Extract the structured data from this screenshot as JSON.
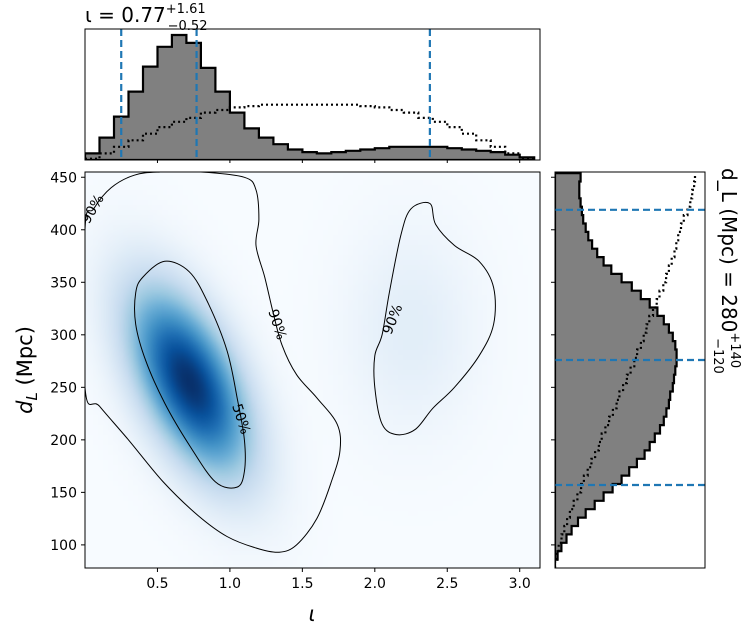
{
  "chart_data": [
    {
      "type": "histogram",
      "panel": "top-marginal",
      "title": {
        "base": "ι = 0.77",
        "sup": "+1.61",
        "sub": "−0.52"
      },
      "xlim": [
        0.0,
        3.14
      ],
      "x": [
        0.05,
        0.15,
        0.25,
        0.35,
        0.45,
        0.55,
        0.65,
        0.75,
        0.85,
        0.95,
        1.05,
        1.15,
        1.25,
        1.35,
        1.45,
        1.55,
        1.65,
        1.75,
        1.85,
        1.95,
        2.05,
        2.15,
        2.25,
        2.35,
        2.45,
        2.55,
        2.65,
        2.75,
        2.85,
        2.95,
        3.05
      ],
      "posterior": [
        0.05,
        0.17,
        0.33,
        0.52,
        0.71,
        0.86,
        0.95,
        0.89,
        0.7,
        0.52,
        0.36,
        0.24,
        0.17,
        0.12,
        0.08,
        0.06,
        0.05,
        0.06,
        0.07,
        0.08,
        0.09,
        0.1,
        0.1,
        0.1,
        0.1,
        0.09,
        0.08,
        0.07,
        0.06,
        0.04,
        0.02
      ],
      "prior": [
        0.01,
        0.05,
        0.1,
        0.15,
        0.2,
        0.25,
        0.29,
        0.32,
        0.36,
        0.38,
        0.4,
        0.41,
        0.42,
        0.42,
        0.42,
        0.42,
        0.42,
        0.42,
        0.42,
        0.41,
        0.4,
        0.38,
        0.36,
        0.32,
        0.29,
        0.25,
        0.2,
        0.15,
        0.1,
        0.05,
        0.01
      ],
      "quantile_lines": [
        0.25,
        0.77,
        2.38
      ]
    },
    {
      "type": "heatmap",
      "panel": "joint",
      "xlabel": "ι",
      "ylabel": "d_L (Mpc)",
      "xlim": [
        0.0,
        3.14
      ],
      "ylim": [
        78,
        455
      ],
      "xticks": [
        "0.5",
        "1.0",
        "1.5",
        "2.0",
        "2.5",
        "3.0"
      ],
      "yticks": [
        "100",
        "150",
        "200",
        "250",
        "300",
        "350",
        "400",
        "450"
      ],
      "colormap": "Blues",
      "modes": [
        {
          "iota": 0.72,
          "dL": 255,
          "sigma_iota": 0.26,
          "sigma_dL": 55,
          "corr": -0.55,
          "weight": 1.0
        },
        {
          "iota": 2.25,
          "dL": 305,
          "sigma_iota": 0.28,
          "sigma_dL": 60,
          "corr": 0.0,
          "weight": 0.06
        }
      ],
      "contours": [
        {
          "level": "50%",
          "points": [
            [
              0.4,
              355
            ],
            [
              0.55,
              370
            ],
            [
              0.72,
              360
            ],
            [
              0.85,
              330
            ],
            [
              0.98,
              285
            ],
            [
              1.05,
              240
            ],
            [
              1.1,
              200
            ],
            [
              1.1,
              170
            ],
            [
              1.05,
              155
            ],
            [
              0.9,
              160
            ],
            [
              0.72,
              195
            ],
            [
              0.55,
              235
            ],
            [
              0.42,
              275
            ],
            [
              0.35,
              310
            ],
            [
              0.35,
              340
            ]
          ]
        },
        {
          "level": "90%",
          "points": [
            [
              0.0,
              250
            ],
            [
              0.0,
              400
            ],
            [
              0.06,
              420
            ],
            [
              0.18,
              440
            ],
            [
              0.34,
              452
            ],
            [
              0.52,
              455
            ],
            [
              0.8,
              455
            ],
            [
              1.1,
              450
            ],
            [
              1.18,
              438
            ],
            [
              1.2,
              410
            ],
            [
              1.18,
              385
            ],
            [
              1.24,
              355
            ],
            [
              1.3,
              320
            ],
            [
              1.36,
              290
            ],
            [
              1.46,
              262
            ],
            [
              1.6,
              240
            ],
            [
              1.74,
              215
            ],
            [
              1.76,
              190
            ],
            [
              1.7,
              160
            ],
            [
              1.6,
              125
            ],
            [
              1.46,
              100
            ],
            [
              1.34,
              93
            ],
            [
              1.18,
              97
            ],
            [
              0.98,
              108
            ],
            [
              0.78,
              128
            ],
            [
              0.54,
              160
            ],
            [
              0.3,
              200
            ],
            [
              0.1,
              232
            ]
          ]
        },
        {
          "level": "90%",
          "points": [
            [
              2.1,
              340
            ],
            [
              2.18,
              395
            ],
            [
              2.25,
              420
            ],
            [
              2.38,
              425
            ],
            [
              2.42,
              405
            ],
            [
              2.55,
              385
            ],
            [
              2.72,
              370
            ],
            [
              2.82,
              345
            ],
            [
              2.82,
              310
            ],
            [
              2.72,
              280
            ],
            [
              2.55,
              250
            ],
            [
              2.4,
              230
            ],
            [
              2.28,
              210
            ],
            [
              2.15,
              205
            ],
            [
              2.05,
              215
            ],
            [
              2.0,
              250
            ],
            [
              2.0,
              280
            ],
            [
              2.05,
              300
            ]
          ]
        }
      ],
      "contour_labels": [
        {
          "text": "90%",
          "iota": 0.05,
          "dL": 420
        },
        {
          "text": "90%",
          "iota": 1.33,
          "dL": 310
        },
        {
          "text": "50%",
          "iota": 1.08,
          "dL": 220
        },
        {
          "text": "90%",
          "iota": 2.12,
          "dL": 315
        }
      ]
    },
    {
      "type": "histogram",
      "panel": "right-marginal",
      "orientation": "horizontal",
      "title": {
        "base": "d_L (Mpc) = 280",
        "sup": "+140",
        "sub": "−120"
      },
      "ylim": [
        78,
        455
      ],
      "y": [
        82,
        90,
        98,
        106,
        114,
        122,
        130,
        138,
        146,
        154,
        162,
        170,
        178,
        186,
        194,
        202,
        210,
        218,
        226,
        234,
        242,
        250,
        258,
        266,
        274,
        282,
        290,
        298,
        306,
        314,
        322,
        330,
        338,
        346,
        354,
        362,
        370,
        378,
        386,
        394,
        402,
        410,
        418,
        426,
        434,
        442,
        450
      ],
      "posterior": [
        0.0,
        0.02,
        0.05,
        0.09,
        0.13,
        0.18,
        0.24,
        0.31,
        0.38,
        0.45,
        0.52,
        0.58,
        0.64,
        0.7,
        0.74,
        0.78,
        0.82,
        0.85,
        0.87,
        0.89,
        0.9,
        0.92,
        0.93,
        0.94,
        0.95,
        0.95,
        0.94,
        0.92,
        0.89,
        0.85,
        0.8,
        0.74,
        0.67,
        0.6,
        0.52,
        0.44,
        0.38,
        0.33,
        0.29,
        0.26,
        0.24,
        0.22,
        0.21,
        0.2,
        0.19,
        0.19,
        0.2
      ],
      "prior": [
        0.0,
        0.02,
        0.04,
        0.07,
        0.1,
        0.13,
        0.16,
        0.2,
        0.24,
        0.28,
        0.31,
        0.35,
        0.39,
        0.43,
        0.47,
        0.5,
        0.54,
        0.58,
        0.62,
        0.66,
        0.69,
        0.73,
        0.77,
        0.81,
        0.85,
        0.88,
        0.92,
        0.95,
        0.98,
        1.01,
        1.05,
        1.09,
        1.12,
        1.16,
        1.19,
        1.22,
        1.25,
        1.28,
        1.3,
        1.32,
        1.35,
        1.38,
        1.42,
        1.45,
        1.47,
        1.49,
        1.5
      ],
      "quantile_lines": [
        157,
        276,
        419
      ]
    }
  ],
  "colors": {
    "hist_fill": "#808080",
    "hist_edge": "#000000",
    "quantile_line": "#1f77b4",
    "contour": "#000000"
  }
}
